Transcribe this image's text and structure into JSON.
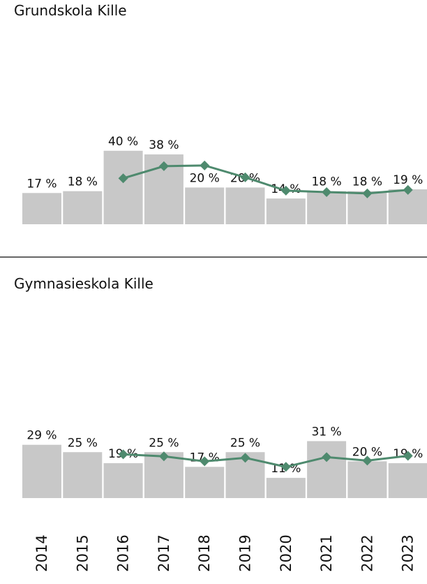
{
  "chart_data": [
    {
      "type": "bar",
      "title": "Grundskola Kille",
      "values": [
        17,
        18,
        40,
        38,
        20,
        20,
        14,
        18,
        18,
        19
      ],
      "value_labels": [
        "17 %",
        "18 %",
        "40 %",
        "38 %",
        "20 %",
        "20 %",
        "14 %",
        "18 %",
        "18 %",
        "19 %"
      ],
      "color": "#c8c8c8",
      "series": [
        {
          "color": "#4e8a6e",
          "values": [
            null,
            null,
            25,
            31.6,
            32,
            25.5,
            18.3,
            17.5,
            16.8,
            18.7
          ]
        }
      ]
    },
    {
      "type": "bar",
      "title": "Gymnasieskola Kille",
      "categories": [
        "2014",
        "2015",
        "2016",
        "2017",
        "2018",
        "2019",
        "2020",
        "2021",
        "2022",
        "2023"
      ],
      "values": [
        29,
        25,
        19,
        25,
        17,
        25,
        11,
        31,
        20,
        19
      ],
      "value_labels": [
        "29 %",
        "25 %",
        "19 %",
        "25 %",
        "17 %",
        "25 %",
        "11 %",
        "31 %",
        "20 %",
        "19 %"
      ],
      "color": "#c8c8c8",
      "series": [
        {
          "color": "#4e8a6e",
          "values": [
            null,
            null,
            23.8,
            22.7,
            20,
            21.9,
            17,
            22.3,
            20.4,
            23
          ]
        }
      ]
    }
  ]
}
